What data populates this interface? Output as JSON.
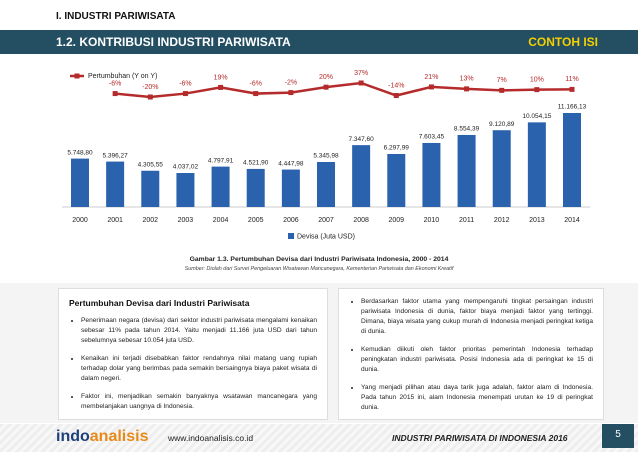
{
  "header": {
    "section": "I. INDUSTRI PARIWISATA",
    "title": "1.2. KONTRIBUSI INDUSTRI PARIWISATA",
    "badge": "CONTOH ISI"
  },
  "chart_data": {
    "type": "bar",
    "categories": [
      "2000",
      "2001",
      "2002",
      "2003",
      "2004",
      "2005",
      "2006",
      "2007",
      "2008",
      "2009",
      "2010",
      "2011",
      "2012",
      "2013",
      "2014"
    ],
    "series": [
      {
        "name": "Devisa (Juta USD)",
        "type": "bar",
        "color": "#2a62ad",
        "values": [
          5748.8,
          5396.27,
          4305.55,
          4037.02,
          4797.91,
          4521.9,
          4447.98,
          5345.98,
          7347.6,
          6297.99,
          7603.45,
          8554.39,
          9120.89,
          10054.15,
          11166.13
        ],
        "value_labels": [
          "5.748,80",
          "5.396,27",
          "4.305,55",
          "4.037,02",
          "4.797,91",
          "4.521,90",
          "4.447,98",
          "5.345,98",
          "7.347,60",
          "6.297,99",
          "7.603,45",
          "8.554,39",
          "9.120,89",
          "10.054,15",
          "11.166,13"
        ]
      },
      {
        "name": "Pertumbuhan (Y on Y)",
        "type": "line",
        "color": "#b52a2a",
        "values": [
          null,
          -6,
          -20,
          -6,
          19,
          -6,
          -2,
          20,
          37,
          -14,
          21,
          13,
          7,
          10,
          11
        ],
        "value_labels": [
          null,
          "-6%",
          "-20%",
          "-6%",
          "19%",
          "-6%",
          "-2%",
          "20%",
          "37%",
          "-14%",
          "21%",
          "13%",
          "7%",
          "10%",
          "11%"
        ]
      }
    ]
  },
  "caption": {
    "title": "Gambar 1.3. Pertumbuhan Devisa dari Industri Pariwisata Indonesia, 2000 - 2014",
    "source": "Sumber: Diolah dari Survei Pengeluaran Wisatawan Mancanegara, Kementerian Pariwisata dan Ekonomi Kreatif"
  },
  "left": {
    "title": "Pertumbuhan Devisa dari Industri Pariwisata",
    "bullets": [
      "Penerimaan negara (devisa) dari sektor industri pariwisata mengalami kenaikan sebesar 11% pada tahun 2014. Yaitu menjadi 11.166 juta USD dari tahun sebelumnya sebesar 10.054 juta USD.",
      "Kenaikan ini terjadi disebabkan faktor rendahnya nilai matang uang rupiah terhadap dolar yang berimbas pada semakin bersaingnya biaya paket wisata di dalam negeri.",
      "Faktor ini, menjadikan semakin banyaknya wsatawan mancanegara yang membelanjakan uangnya di Indonesia."
    ]
  },
  "right": {
    "bullets": [
      "Berdasarkan faktor utama yang mempengaruhi tingkat persaingan industri pariwisata Indonesia di dunia, faktor biaya menjadi faktor yang tertinggi. Dimana, biaya wisata yang cukup murah di Indonesia menjadi peringkat ketiga di dunia.",
      "Kemudian diikuti oleh faktor prioritas pemerintah Indonesia terhadap peningkatan industri pariwisata. Posisi Indonesia ada di peringkat ke 15 di dunia.",
      "Yang menjadi pilihan atau daya tarik juga adalah, faktor alam di Indonesia. Pada tahun 2015 ini, alam Indonesia menempati urutan ke 19 di peringkat dunia."
    ]
  },
  "footer": {
    "logo_a": "indo",
    "logo_b": "analisis",
    "url": "www.indoanalisis.co.id",
    "report": "INDUSTRI PARIWISATA DI INDONESIA 2016",
    "page": "5"
  }
}
